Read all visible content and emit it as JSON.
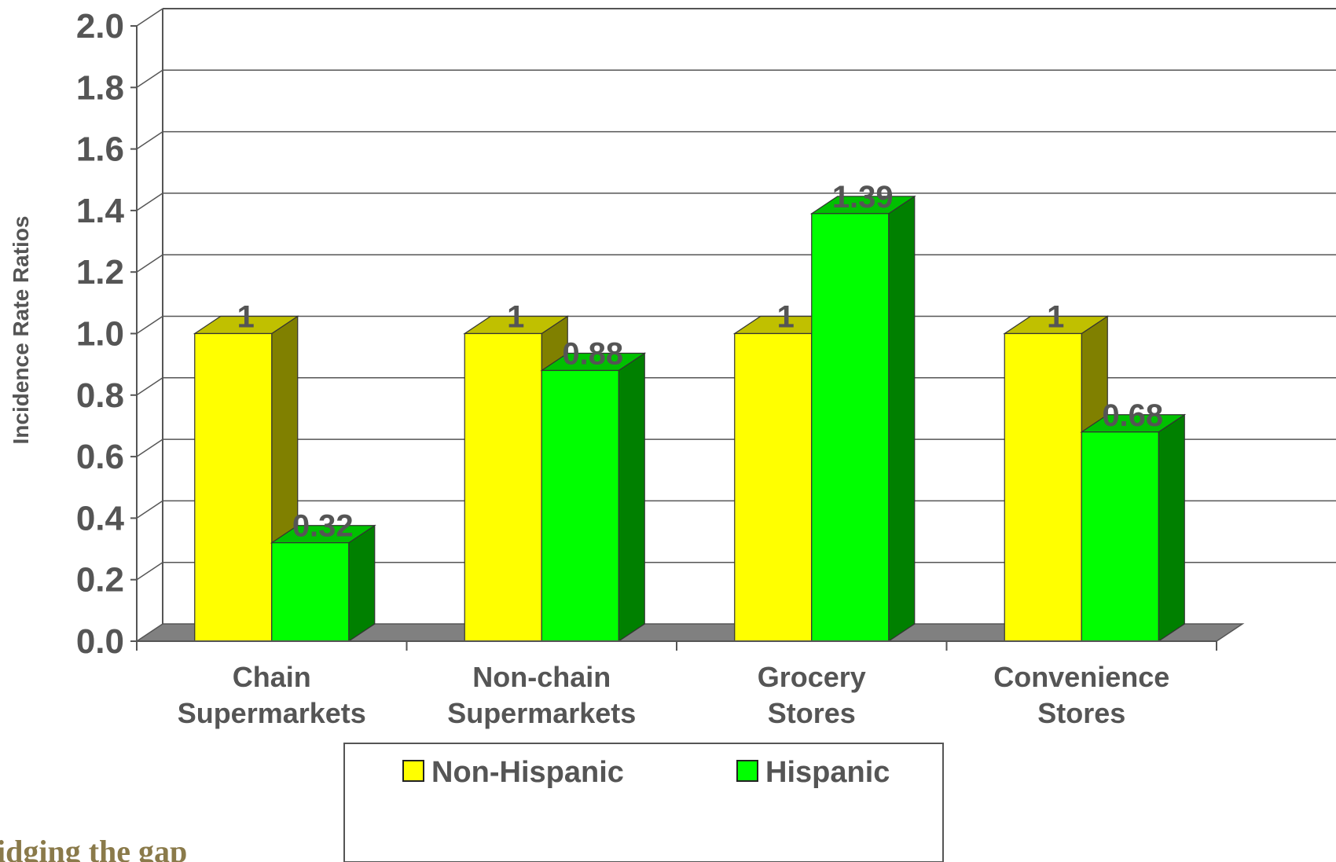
{
  "chart_data": {
    "type": "bar",
    "style": "3d-clustered",
    "title": "",
    "xlabel": "",
    "ylabel": "Incidence Rate Ratios",
    "ylim": [
      0,
      2.0
    ],
    "yticks": [
      "0.0",
      "0.2",
      "0.4",
      "0.6",
      "0.8",
      "1.0",
      "1.2",
      "1.4",
      "1.6",
      "1.8",
      "2.0"
    ],
    "categories": [
      [
        "Chain",
        "Supermarkets"
      ],
      [
        "Non-chain",
        "Supermarkets"
      ],
      [
        "Grocery",
        "Stores"
      ],
      [
        "Convenience",
        "Stores"
      ]
    ],
    "series": [
      {
        "name": "Non-Hispanic",
        "values": [
          1,
          1,
          1,
          1
        ],
        "labels": [
          "1",
          "1",
          "1",
          "1"
        ],
        "color": "#ffff00",
        "side_color": "#808000",
        "top_color": "#c0c000"
      },
      {
        "name": "Hispanic",
        "values": [
          0.32,
          0.88,
          1.39,
          0.68
        ],
        "labels": [
          "0.32",
          "0.88",
          "1.39",
          "0.68"
        ],
        "color": "#00ff00",
        "side_color": "#008000",
        "top_color": "#00c000"
      }
    ],
    "grid": true,
    "legend": "bottom-center"
  },
  "footer": {
    "brand_text": "idging the gap"
  }
}
